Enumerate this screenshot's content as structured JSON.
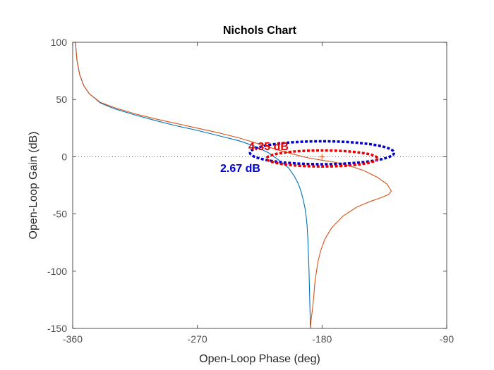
{
  "chart_data": {
    "type": "line",
    "title": "Nichols Chart",
    "xlabel": "Open-Loop Phase (deg)",
    "ylabel": "Open-Loop Gain (dB)",
    "xlim": [
      -360,
      -90
    ],
    "ylim": [
      -150,
      100
    ],
    "xticks": [
      -360,
      -270,
      -180,
      -90
    ],
    "xtick_labels": [
      "-360",
      "-270",
      "-180",
      "-90"
    ],
    "yticks": [
      100,
      50,
      0,
      -50,
      -100,
      -150
    ],
    "ytick_labels": [
      "100",
      "50",
      "0",
      "-50",
      "-100",
      "-150"
    ],
    "grid": false,
    "zero_db_line": {
      "y": 0,
      "style": "dotted"
    },
    "critical_point": {
      "x": -180,
      "y": 0,
      "marker": "+"
    },
    "series": [
      {
        "color": "#0072bd",
        "x": [
          -358,
          -357,
          -355,
          -352,
          -348,
          -340,
          -330,
          -315,
          -300,
          -285,
          -270,
          -255,
          -240,
          -228,
          -218,
          -210,
          -204,
          -200,
          -197,
          -195,
          -193.5,
          -192.3,
          -191.5,
          -190.8,
          -190.3,
          -190,
          -189.7,
          -189.4,
          -189.2,
          -189,
          -188.8,
          -188.6,
          -188.5
        ],
        "y": [
          100,
          85,
          72,
          62,
          55,
          47,
          42,
          36.5,
          31.5,
          27,
          23,
          18.5,
          14,
          9,
          3,
          -4,
          -10,
          -17,
          -24,
          -31,
          -38,
          -45,
          -52,
          -60,
          -70,
          -80,
          -90,
          -100,
          -110,
          -120,
          -130,
          -140,
          -150
        ]
      },
      {
        "color": "#d95319",
        "x": [
          -358,
          -357,
          -355,
          -352,
          -348,
          -340,
          -330,
          -315,
          -300,
          -285,
          -270,
          -255,
          -240,
          -225,
          -212,
          -200,
          -190,
          -180,
          -170,
          -160,
          -150,
          -140,
          -133,
          -130,
          -132,
          -138,
          -145,
          -155,
          -165,
          -173,
          -178,
          -181,
          -183,
          -184,
          -185,
          -185.5,
          -186,
          -186.5,
          -187,
          -187.5,
          -188,
          -188.2,
          -188.5
        ],
        "y": [
          100,
          85,
          72,
          62,
          55,
          47.5,
          43,
          37.5,
          33,
          29,
          25,
          21,
          16.5,
          11,
          6,
          2,
          -1,
          -3,
          -5,
          -8,
          -12,
          -18,
          -24,
          -30,
          -33,
          -36,
          -39,
          -44,
          -52,
          -62,
          -72,
          -82,
          -92,
          -100,
          -108,
          -115,
          -122,
          -128,
          -134,
          -139,
          -144,
          -147,
          -150
        ]
      }
    ],
    "margin_ellipses": [
      {
        "color": "#0000cc",
        "label": "2.67 dB",
        "cx": -180,
        "cy": 3.5,
        "rx": 52,
        "ry": 10
      },
      {
        "color": "#e60000",
        "label": "4.35 dB",
        "cx": -180,
        "cy": -1.5,
        "rx": 40,
        "ry": 7
      }
    ]
  }
}
